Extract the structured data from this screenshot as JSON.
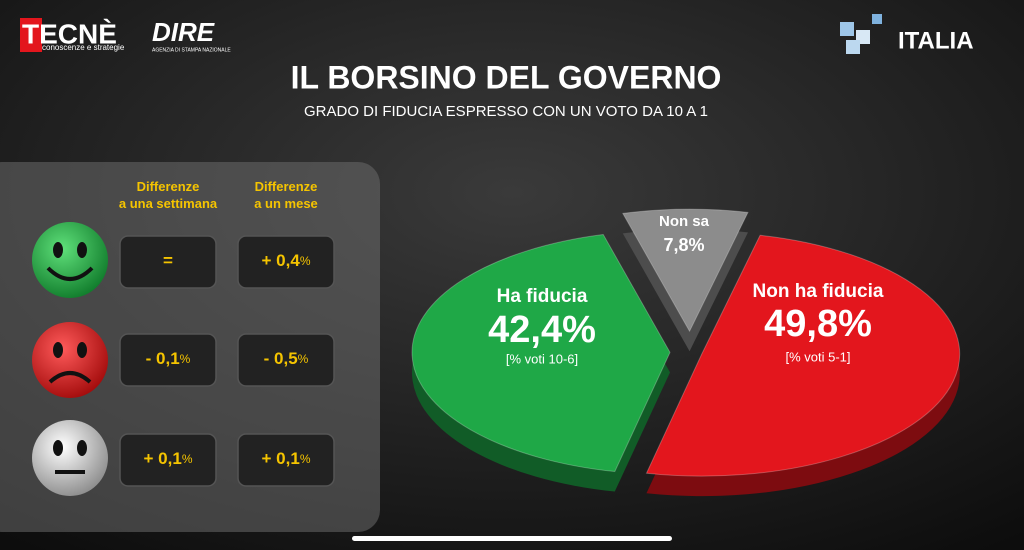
{
  "header": {
    "brand": "TECNÈ",
    "brand_tagline": "conoscenze e strategie",
    "partner": "DIRE",
    "partner_tagline": "AGENZIA DI STAMPA NAZIONALE",
    "channel": "ITALIA"
  },
  "table": {
    "columns": [
      "Differenze\na una settimana",
      "Differenze\na un mese"
    ],
    "rows": [
      [
        {
          "text": "="
        },
        {
          "text": "+ 0,4",
          "unit": "%"
        }
      ],
      [
        {
          "text": "- 0,1",
          "unit": "%"
        },
        {
          "text": "- 0,5",
          "unit": "%"
        }
      ],
      [
        {
          "text": "+ 0,1",
          "unit": "%"
        },
        {
          "text": "+ 0,1",
          "unit": "%"
        }
      ]
    ]
  },
  "chart_data": {
    "type": "pie",
    "title": "IL BORSINO DEL GOVERNO",
    "subtitle": "GRADO DI FIDUCIA ESPRESSO CON UN VOTO DA 10  A 1",
    "categories": [
      "Non sa",
      "Non ha fiducia",
      "Ha fiducia"
    ],
    "values": [
      7.8,
      49.8,
      42.4
    ],
    "value_labels": [
      "7,8%",
      "49,8%",
      "42,4%"
    ],
    "notes": [
      null,
      "[% voti 5-1]",
      "[% voti 10-6]"
    ],
    "colors": [
      "#8c8c8c",
      "#e3161d",
      "#1fa847"
    ]
  }
}
